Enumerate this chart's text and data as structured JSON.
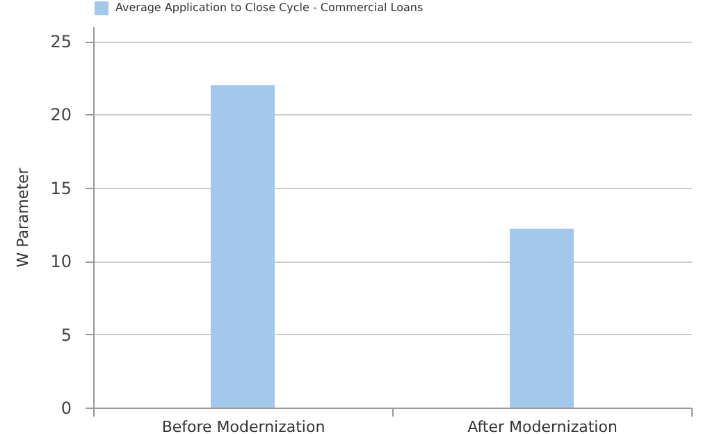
{
  "chart_data": {
    "type": "bar",
    "ylabel": "W Parameter",
    "categories": [
      "Before Modernization",
      "After Modernization"
    ],
    "series": [
      {
        "name": "Average Application to Close Cycle - Commercial Loans",
        "color": "#a3c8ec",
        "values": [
          22,
          12.2
        ]
      }
    ],
    "ylim": [
      0,
      26
    ],
    "yticks": [
      0,
      5,
      10,
      15,
      20,
      25
    ],
    "grid": "y",
    "legend": "top"
  }
}
